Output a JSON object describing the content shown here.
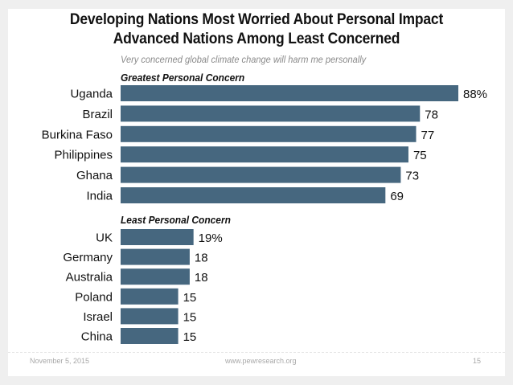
{
  "title_line1": "Developing Nations Most Worried About Personal Impact",
  "title_line2": "Advanced Nations Among Least Concerned",
  "footer": {
    "date": "November 5, 2015",
    "url": "www.pewresearch.org",
    "page": "15"
  },
  "colors": {
    "bar": "#46677f",
    "text": "#111111"
  },
  "chart_data": {
    "type": "bar",
    "orientation": "horizontal",
    "title": "Developing Nations Most Worried About Personal Impact / Advanced Nations Among Least Concerned",
    "subtitle": "Very concerned global climate change will harm me personally",
    "xlabel": "",
    "ylabel": "",
    "xlim": [
      0,
      100
    ],
    "grid": false,
    "legend": "none",
    "unit_suffix_first": "%",
    "groups": [
      {
        "name": "Greatest Personal Concern",
        "categories": [
          "Uganda",
          "Brazil",
          "Burkina Faso",
          "Philippines",
          "Ghana",
          "India"
        ],
        "values": [
          88,
          78,
          77,
          75,
          73,
          69
        ],
        "labels": [
          "88%",
          "78",
          "77",
          "75",
          "73",
          "69"
        ]
      },
      {
        "name": "Least Personal Concern",
        "categories": [
          "UK",
          "Germany",
          "Australia",
          "Poland",
          "Israel",
          "China"
        ],
        "values": [
          19,
          18,
          18,
          15,
          15,
          15
        ],
        "labels": [
          "19%",
          "18",
          "18",
          "15",
          "15",
          "15"
        ]
      }
    ]
  }
}
